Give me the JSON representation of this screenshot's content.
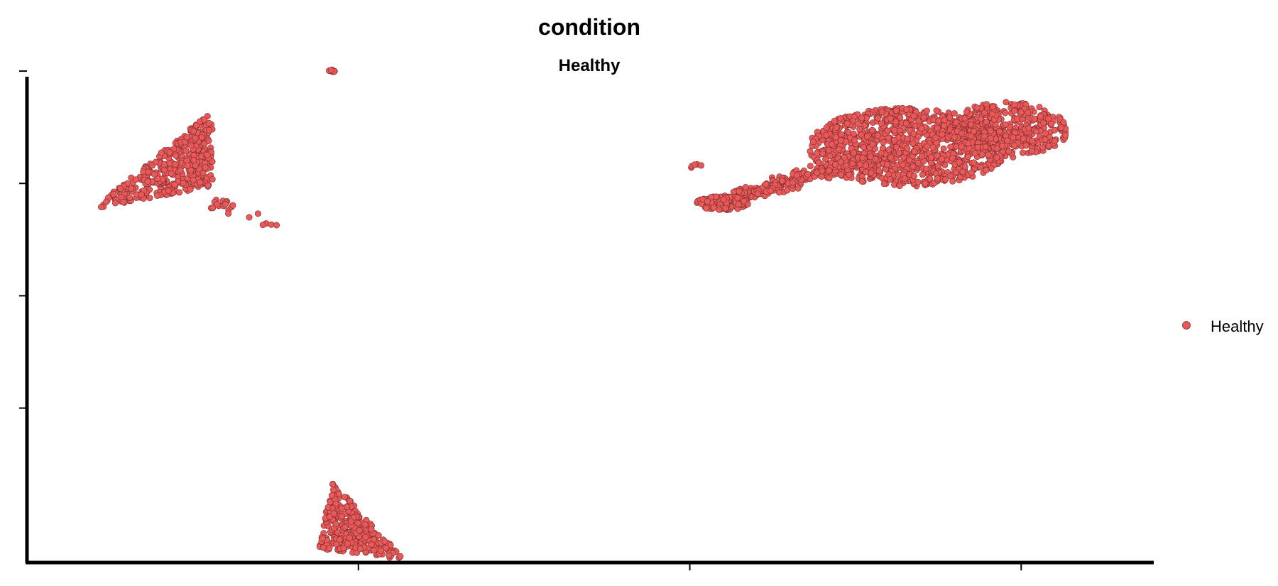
{
  "chart_data": {
    "type": "scatter",
    "title": "condition",
    "subtitle": "Healthy",
    "xlabel": "",
    "ylabel": "",
    "xlim": [
      -2.5,
      14.5
    ],
    "ylim": [
      -5.5,
      11.8
    ],
    "xticks": [
      2.5,
      7.5,
      12.5
    ],
    "yticks": [
      0,
      4,
      8,
      12
    ],
    "xtick_labels": [
      "",
      "",
      ""
    ],
    "ytick_labels": [
      "",
      "",
      "",
      ""
    ],
    "grid": false,
    "legend_position": "right",
    "colors": {
      "series": "#e8595a",
      "edge": "#7a2a2a",
      "axis": "#000000"
    },
    "series": [
      {
        "name": "Healthy",
        "color": "#e8595a",
        "clusters": [
          {
            "id": "cluster-1",
            "shape": "triangle",
            "corners": [
              [
                -1.5,
                7.1
              ],
              [
                0.3,
                10.6
              ],
              [
                0.3,
                7.9
              ]
            ],
            "n": 420
          },
          {
            "id": "cluster-1-tail",
            "shape": "line",
            "from": [
              0.2,
              7.4
            ],
            "to": [
              1.3,
              6.5
            ],
            "n": 22
          },
          {
            "id": "cluster-2",
            "shape": "ellipse",
            "center": [
              2.1,
              12.0
            ],
            "radius": [
              0.06,
              0.06
            ],
            "n": 8
          },
          {
            "id": "cluster-3",
            "shape": "triangle",
            "corners": [
              [
                1.9,
                -5.0
              ],
              [
                2.1,
                -2.6
              ],
              [
                3.2,
                -5.4
              ]
            ],
            "n": 330
          },
          {
            "id": "cluster-4",
            "shape": "ellipse",
            "center": [
              10.8,
              9.3
            ],
            "radius": [
              1.5,
              1.4
            ],
            "n": 1000
          },
          {
            "id": "cluster-5",
            "shape": "ellipse",
            "center": [
              12.3,
              9.9
            ],
            "radius": [
              0.9,
              1.0
            ],
            "n": 400
          },
          {
            "id": "cluster-6",
            "shape": "line",
            "from": [
              7.9,
              7.3
            ],
            "to": [
              10.2,
              8.9
            ],
            "n": 380
          },
          {
            "id": "cluster-7",
            "shape": "ellipse",
            "center": [
              8.0,
              7.3
            ],
            "radius": [
              0.4,
              0.25
            ],
            "n": 140
          },
          {
            "id": "cluster-8",
            "shape": "ellipse",
            "center": [
              7.6,
              8.6
            ],
            "radius": [
              0.1,
              0.1
            ],
            "n": 5
          }
        ]
      }
    ]
  }
}
